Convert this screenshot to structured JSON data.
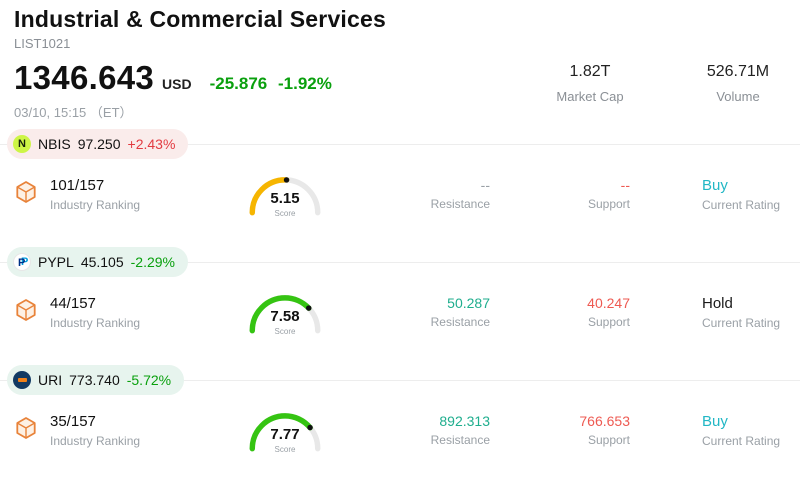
{
  "header": {
    "title": "Industrial & Commercial Services",
    "list_id": "LIST1021",
    "price": "1346.643",
    "currency": "USD",
    "change": "-25.876 -1.92%",
    "datetime": "03/10, 15:15 （ET）",
    "market_cap": {
      "value": "1.82T",
      "label": "Market Cap"
    },
    "volume": {
      "value": "526.71M",
      "label": "Volume"
    }
  },
  "labels": {
    "industry_ranking": "Industry Ranking",
    "resistance": "Resistance",
    "support": "Support",
    "current_rating": "Current Rating",
    "score": "Score"
  },
  "colors": {
    "up_red": "#e23b41",
    "down_green": "#0aa00e",
    "resistance_teal": "#1fae8e",
    "support_red": "#ee5a52",
    "buy_cyan": "#22b7c5",
    "gauge_yellow": "#f6b500",
    "gauge_green": "#35c412",
    "badge_up_bg": "#faeceb",
    "badge_down_bg": "#e7f4ee",
    "nbis_logo": "#cdf546",
    "pypl_logo": "#003087",
    "uri_logo": "#123a63",
    "hexagon_orange": "#e8833a"
  },
  "stocks": [
    {
      "ticker": "NBIS",
      "price": "97.250",
      "change": "+2.43%",
      "direction": "up",
      "ranking": "101/157",
      "score": 5.15,
      "resistance": "--",
      "support": "--",
      "rating": "Buy"
    },
    {
      "ticker": "PYPL",
      "price": "45.105",
      "change": "-2.29%",
      "direction": "down",
      "ranking": "44/157",
      "score": 7.58,
      "resistance": "50.287",
      "support": "40.247",
      "rating": "Hold"
    },
    {
      "ticker": "URI",
      "price": "773.740",
      "change": "-5.72%",
      "direction": "down",
      "ranking": "35/157",
      "score": 7.77,
      "resistance": "892.313",
      "support": "766.653",
      "rating": "Buy"
    }
  ]
}
